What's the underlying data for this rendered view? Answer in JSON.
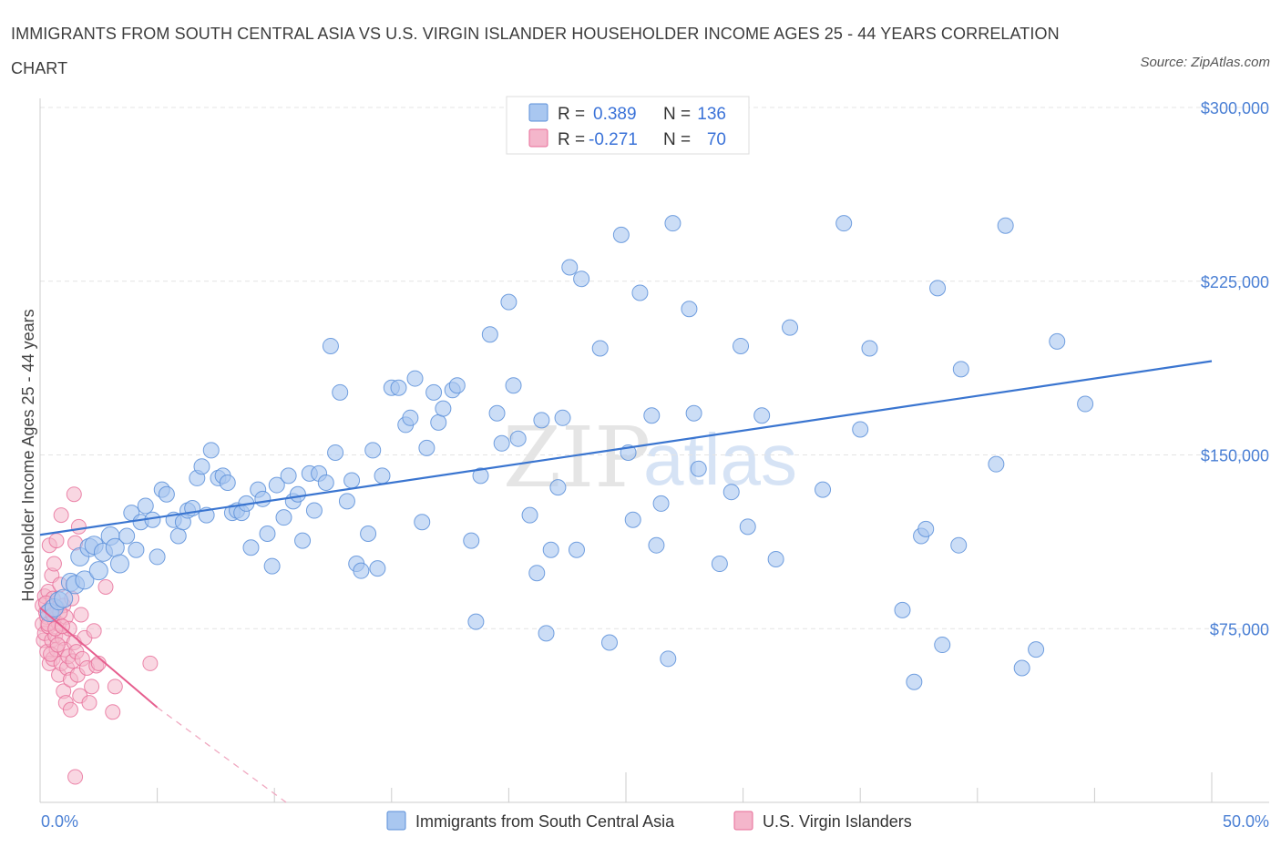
{
  "title": "IMMIGRANTS FROM SOUTH CENTRAL ASIA VS U.S. VIRGIN ISLANDER HOUSEHOLDER INCOME AGES 25 - 44 YEARS CORRELATION CHART",
  "source": "Source: ZipAtlas.com",
  "watermark": {
    "zip": "ZIP",
    "atlas": "atlas"
  },
  "legend": {
    "rows": [
      {
        "r_label": "R =",
        "r_value": "0.389",
        "n_label": "N =",
        "n_value": "136",
        "color": "#a9c7f0"
      },
      {
        "r_label": "R =",
        "r_value": "-0.271",
        "n_label": "N =",
        "n_value": "70",
        "color": "#f4b6cb"
      }
    ]
  },
  "colors": {
    "blue_fill": "#a9c7f0",
    "blue_stroke": "#5b8fd9",
    "blue_line": "#3a75d0",
    "pink_fill": "#f4b6cb",
    "pink_stroke": "#e76b97",
    "pink_line": "#e65f8f",
    "axis_label": "#4a7fd4",
    "grid": "#e4e4e4"
  },
  "chart_data": {
    "type": "scatter",
    "title": "IMMIGRANTS FROM SOUTH CENTRAL ASIA VS U.S. VIRGIN ISLANDER HOUSEHOLDER INCOME AGES 25 - 44 YEARS CORRELATION CHART",
    "xlabel": "",
    "ylabel": "Householder Income Ages 25 - 44 years",
    "xlim": [
      0,
      50
    ],
    "ylim": [
      0,
      300000
    ],
    "x_tick_labels": [
      "0.0%",
      "50.0%"
    ],
    "y_ticks": [
      75000,
      150000,
      225000,
      300000
    ],
    "y_tick_labels": [
      "$75,000",
      "$150,000",
      "$225,000",
      "$300,000"
    ],
    "grid": true,
    "legend_position": "top-center",
    "series": [
      {
        "name": "Immigrants from South Central Asia",
        "r": 0.389,
        "n": 136,
        "trend": {
          "x": [
            0,
            50
          ],
          "y": [
            115500,
            190500
          ]
        },
        "points": [
          [
            0.4,
            82000
          ],
          [
            0.6,
            84000
          ],
          [
            0.8,
            87000
          ],
          [
            1.0,
            88000
          ],
          [
            1.3,
            95000
          ],
          [
            1.5,
            94000
          ],
          [
            1.7,
            106000
          ],
          [
            1.9,
            96000
          ],
          [
            2.1,
            110000
          ],
          [
            2.3,
            111000
          ],
          [
            2.5,
            100000
          ],
          [
            2.7,
            108000
          ],
          [
            3.0,
            115000
          ],
          [
            3.2,
            110000
          ],
          [
            3.4,
            103000
          ],
          [
            3.7,
            115000
          ],
          [
            3.9,
            125000
          ],
          [
            4.1,
            109000
          ],
          [
            4.3,
            121000
          ],
          [
            4.5,
            128000
          ],
          [
            4.8,
            122000
          ],
          [
            5.0,
            106000
          ],
          [
            5.2,
            135000
          ],
          [
            5.4,
            133000
          ],
          [
            5.7,
            122000
          ],
          [
            5.9,
            115000
          ],
          [
            6.1,
            121000
          ],
          [
            6.3,
            126000
          ],
          [
            6.5,
            127000
          ],
          [
            6.7,
            140000
          ],
          [
            6.9,
            145000
          ],
          [
            7.1,
            124000
          ],
          [
            7.3,
            152000
          ],
          [
            7.6,
            140000
          ],
          [
            7.8,
            141000
          ],
          [
            8.0,
            138000
          ],
          [
            8.2,
            125000
          ],
          [
            8.4,
            126000
          ],
          [
            8.6,
            125000
          ],
          [
            8.8,
            129000
          ],
          [
            9.0,
            110000
          ],
          [
            9.3,
            135000
          ],
          [
            9.5,
            131000
          ],
          [
            9.7,
            116000
          ],
          [
            9.9,
            102000
          ],
          [
            10.1,
            137000
          ],
          [
            10.4,
            123000
          ],
          [
            10.6,
            141000
          ],
          [
            10.8,
            130000
          ],
          [
            11.0,
            133000
          ],
          [
            11.2,
            113000
          ],
          [
            11.5,
            142000
          ],
          [
            11.7,
            126000
          ],
          [
            11.9,
            142000
          ],
          [
            12.2,
            138000
          ],
          [
            12.4,
            197000
          ],
          [
            12.6,
            151000
          ],
          [
            12.8,
            177000
          ],
          [
            13.1,
            130000
          ],
          [
            13.3,
            139000
          ],
          [
            13.5,
            103000
          ],
          [
            13.7,
            100000
          ],
          [
            14.0,
            116000
          ],
          [
            14.2,
            152000
          ],
          [
            14.4,
            101000
          ],
          [
            14.6,
            141000
          ],
          [
            15.0,
            179000
          ],
          [
            15.3,
            179000
          ],
          [
            15.6,
            163000
          ],
          [
            15.8,
            166000
          ],
          [
            16.0,
            183000
          ],
          [
            16.3,
            121000
          ],
          [
            16.5,
            153000
          ],
          [
            16.8,
            177000
          ],
          [
            17.0,
            164000
          ],
          [
            17.2,
            170000
          ],
          [
            17.6,
            178000
          ],
          [
            17.8,
            180000
          ],
          [
            18.4,
            113000
          ],
          [
            18.6,
            78000
          ],
          [
            18.8,
            141000
          ],
          [
            19.2,
            202000
          ],
          [
            19.5,
            168000
          ],
          [
            19.7,
            155000
          ],
          [
            20.0,
            216000
          ],
          [
            20.2,
            180000
          ],
          [
            20.4,
            157000
          ],
          [
            20.9,
            124000
          ],
          [
            21.2,
            99000
          ],
          [
            21.4,
            165000
          ],
          [
            21.6,
            73000
          ],
          [
            21.8,
            109000
          ],
          [
            22.1,
            136000
          ],
          [
            22.3,
            166000
          ],
          [
            22.6,
            231000
          ],
          [
            22.9,
            109000
          ],
          [
            23.1,
            226000
          ],
          [
            23.9,
            196000
          ],
          [
            24.3,
            69000
          ],
          [
            24.8,
            245000
          ],
          [
            25.1,
            151000
          ],
          [
            25.3,
            122000
          ],
          [
            25.6,
            220000
          ],
          [
            26.1,
            167000
          ],
          [
            26.3,
            111000
          ],
          [
            26.5,
            129000
          ],
          [
            26.8,
            62000
          ],
          [
            27.0,
            250000
          ],
          [
            27.7,
            213000
          ],
          [
            27.9,
            168000
          ],
          [
            28.1,
            144000
          ],
          [
            29.0,
            103000
          ],
          [
            29.5,
            134000
          ],
          [
            29.9,
            197000
          ],
          [
            30.2,
            119000
          ],
          [
            30.8,
            167000
          ],
          [
            31.4,
            105000
          ],
          [
            32.0,
            205000
          ],
          [
            33.4,
            135000
          ],
          [
            34.3,
            250000
          ],
          [
            35.0,
            161000
          ],
          [
            35.4,
            196000
          ],
          [
            36.8,
            83000
          ],
          [
            37.3,
            52000
          ],
          [
            37.6,
            115000
          ],
          [
            37.8,
            118000
          ],
          [
            38.3,
            222000
          ],
          [
            38.5,
            68000
          ],
          [
            39.2,
            111000
          ],
          [
            39.3,
            187000
          ],
          [
            40.8,
            146000
          ],
          [
            41.2,
            249000
          ],
          [
            41.9,
            58000
          ],
          [
            42.5,
            66000
          ],
          [
            43.4,
            199000
          ],
          [
            44.6,
            172000
          ]
        ]
      },
      {
        "name": "U.S. Virgin Islanders",
        "r": -0.271,
        "n": 70,
        "trend": {
          "x": [
            0,
            5
          ],
          "y": [
            84000,
            41000
          ]
        },
        "trend_dashed": {
          "x": [
            5,
            10.5
          ],
          "y": [
            41000,
            0
          ]
        },
        "points": [
          [
            0.1,
            85000
          ],
          [
            0.1,
            77000
          ],
          [
            0.15,
            70000
          ],
          [
            0.2,
            89000
          ],
          [
            0.2,
            73000
          ],
          [
            0.25,
            82000
          ],
          [
            0.3,
            65000
          ],
          [
            0.3,
            80000
          ],
          [
            0.35,
            91000
          ],
          [
            0.35,
            76000
          ],
          [
            0.4,
            111000
          ],
          [
            0.4,
            60000
          ],
          [
            0.45,
            84000
          ],
          [
            0.5,
            98000
          ],
          [
            0.5,
            70000
          ],
          [
            0.55,
            88000
          ],
          [
            0.55,
            62000
          ],
          [
            0.6,
            79000
          ],
          [
            0.6,
            103000
          ],
          [
            0.65,
            72000
          ],
          [
            0.7,
            113000
          ],
          [
            0.7,
            66000
          ],
          [
            0.75,
            84000
          ],
          [
            0.8,
            55000
          ],
          [
            0.8,
            77000
          ],
          [
            0.85,
            94000
          ],
          [
            0.9,
            124000
          ],
          [
            0.9,
            60000
          ],
          [
            0.95,
            71000
          ],
          [
            1.0,
            85000
          ],
          [
            1.0,
            48000
          ],
          [
            1.05,
            66000
          ],
          [
            1.1,
            43000
          ],
          [
            1.1,
            80000
          ],
          [
            1.15,
            58000
          ],
          [
            1.2,
            63000
          ],
          [
            1.25,
            75000
          ],
          [
            1.3,
            40000
          ],
          [
            1.3,
            53000
          ],
          [
            1.35,
            88000
          ],
          [
            1.4,
            61000
          ],
          [
            1.45,
            69000
          ],
          [
            1.5,
            112000
          ],
          [
            1.5,
            11000
          ],
          [
            1.55,
            65000
          ],
          [
            1.6,
            55000
          ],
          [
            1.7,
            46000
          ],
          [
            1.75,
            81000
          ],
          [
            1.8,
            62000
          ],
          [
            1.9,
            71000
          ],
          [
            2.0,
            58000
          ],
          [
            2.1,
            43000
          ],
          [
            2.2,
            50000
          ],
          [
            2.3,
            74000
          ],
          [
            2.4,
            59000
          ],
          [
            2.5,
            60000
          ],
          [
            2.8,
            93000
          ],
          [
            3.1,
            39000
          ],
          [
            3.2,
            50000
          ],
          [
            4.7,
            60000
          ],
          [
            1.45,
            133000
          ],
          [
            1.65,
            119000
          ],
          [
            0.25,
            86000
          ],
          [
            0.35,
            77000
          ],
          [
            0.45,
            64000
          ],
          [
            0.55,
            81000
          ],
          [
            0.65,
            75000
          ],
          [
            0.75,
            68000
          ],
          [
            0.85,
            82000
          ],
          [
            0.95,
            76000
          ]
        ]
      }
    ]
  },
  "bottom_legend": [
    {
      "label": "Immigrants from South Central Asia",
      "color": "#a9c7f0"
    },
    {
      "label": "U.S. Virgin Islanders",
      "color": "#f4b6cb"
    }
  ]
}
